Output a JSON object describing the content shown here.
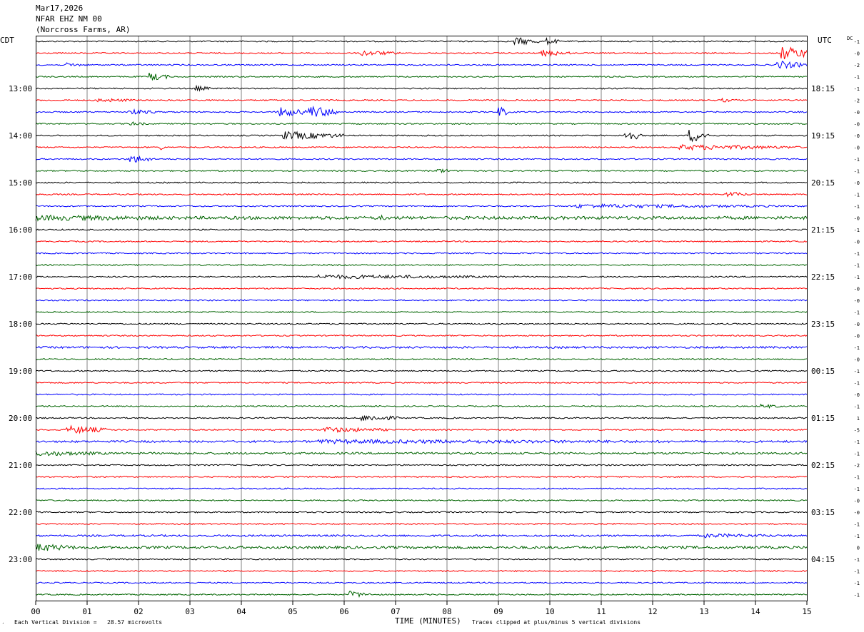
{
  "header": {
    "date": "Mar17,2026",
    "station": "NFAR EHZ NM 00",
    "location": "(Norcross Farms, AR)"
  },
  "left_zone": "CDT",
  "right_zone": "UTC",
  "dc_label": "DC",
  "footer": {
    "scale_note": "Each Vertical Division =   28.57 microvolts",
    "xlabel": "TIME (MINUTES)",
    "clip_note": "Traces clipped at plus/minus 5 vertical divisions",
    "corner_mark": "′"
  },
  "colors": {
    "trace_cycle": [
      "#000000",
      "#ff0000",
      "#0000ff",
      "#006400"
    ],
    "grid": "#808080",
    "frame": "#000000"
  },
  "chart_data": {
    "type": "line",
    "title": "NFAR EHZ NM 00",
    "xlabel": "TIME (MINUTES)",
    "x_ticks": [
      "00",
      "01",
      "02",
      "03",
      "04",
      "05",
      "06",
      "07",
      "08",
      "09",
      "10",
      "11",
      "12",
      "13",
      "14",
      "15"
    ],
    "xlim": [
      0,
      15
    ],
    "trace_count": 48,
    "minutes_per_trace": 15,
    "left_hour_labels": [
      "13:00",
      "14:00",
      "15:00",
      "16:00",
      "17:00",
      "18:00",
      "19:00",
      "20:00",
      "21:00",
      "22:00",
      "23:00"
    ],
    "right_hour_labels": [
      "18:15",
      "19:15",
      "20:15",
      "21:15",
      "22:15",
      "23:15",
      "00:15",
      "01:15",
      "02:15",
      "03:15",
      "04:15"
    ],
    "dc_offsets": [
      "-1",
      "-0",
      "-2",
      "-1",
      "-1",
      "-2",
      "-0",
      "-0",
      "-0",
      "-0",
      "-1",
      "-1",
      "-0",
      "-1",
      "-1",
      "-0",
      "-1",
      "-0",
      "-1",
      "-1",
      "-1",
      "-0",
      "-0",
      "-1",
      "-0",
      "-0",
      "-1",
      "-0",
      "-1",
      "-1",
      "-0",
      "-1",
      "1",
      "-5",
      "-1",
      "-1",
      "-2",
      "-1",
      "-1",
      "-0",
      "-0",
      "-1",
      "-1",
      "0",
      "-1",
      "-1",
      "-1",
      "-1"
    ],
    "events": [
      {
        "trace": 0,
        "minute": 9.3,
        "amp": 6,
        "dur": 0.5
      },
      {
        "trace": 0,
        "minute": 9.9,
        "amp": 5,
        "dur": 0.3
      },
      {
        "trace": 1,
        "minute": 6.3,
        "amp": 4,
        "dur": 0.8
      },
      {
        "trace": 1,
        "minute": 9.8,
        "amp": 5,
        "dur": 0.6
      },
      {
        "trace": 1,
        "minute": 14.5,
        "amp": 10,
        "dur": 0.6
      },
      {
        "trace": 2,
        "minute": 14.4,
        "amp": 6,
        "dur": 0.6
      },
      {
        "trace": 2,
        "minute": 0.6,
        "amp": 3,
        "dur": 0.4
      },
      {
        "trace": 3,
        "minute": 2.2,
        "amp": 6,
        "dur": 0.4
      },
      {
        "trace": 4,
        "minute": 3.1,
        "amp": 4,
        "dur": 0.3
      },
      {
        "trace": 5,
        "minute": 1.2,
        "amp": 3,
        "dur": 0.8
      },
      {
        "trace": 5,
        "minute": 13.3,
        "amp": 3,
        "dur": 0.4
      },
      {
        "trace": 6,
        "minute": 1.8,
        "amp": 4,
        "dur": 0.6
      },
      {
        "trace": 6,
        "minute": 4.7,
        "amp": 7,
        "dur": 0.6
      },
      {
        "trace": 6,
        "minute": 5.3,
        "amp": 9,
        "dur": 0.6
      },
      {
        "trace": 6,
        "minute": 9.0,
        "amp": 8,
        "dur": 0.2
      },
      {
        "trace": 7,
        "minute": 1.8,
        "amp": 3,
        "dur": 0.4
      },
      {
        "trace": 8,
        "minute": 4.8,
        "amp": 6,
        "dur": 1.2
      },
      {
        "trace": 8,
        "minute": 11.4,
        "amp": 9,
        "dur": 0.4
      },
      {
        "trace": 8,
        "minute": 12.7,
        "amp": 10,
        "dur": 0.4
      },
      {
        "trace": 9,
        "minute": 2.4,
        "amp": 5,
        "dur": 0.1
      },
      {
        "trace": 9,
        "minute": 12.5,
        "amp": 4,
        "dur": 2.4
      },
      {
        "trace": 10,
        "minute": 1.8,
        "amp": 6,
        "dur": 0.5
      },
      {
        "trace": 11,
        "minute": 7.8,
        "amp": 4,
        "dur": 0.3
      },
      {
        "trace": 13,
        "minute": 13.4,
        "amp": 4,
        "dur": 0.5
      },
      {
        "trace": 14,
        "minute": 10.5,
        "amp": 3,
        "dur": 4.4
      },
      {
        "trace": 15,
        "minute": 0.0,
        "amp": 4,
        "dur": 4.0
      },
      {
        "trace": 15,
        "minute": 6.7,
        "amp": 4,
        "dur": 0.2
      },
      {
        "trace": 20,
        "minute": 5.5,
        "amp": 3,
        "dur": 4.0
      },
      {
        "trace": 31,
        "minute": 14.1,
        "amp": 3,
        "dur": 0.5
      },
      {
        "trace": 32,
        "minute": 6.3,
        "amp": 5,
        "dur": 0.8
      },
      {
        "trace": 33,
        "minute": 0.6,
        "amp": 6,
        "dur": 0.8
      },
      {
        "trace": 33,
        "minute": 5.6,
        "amp": 4,
        "dur": 1.3
      },
      {
        "trace": 34,
        "minute": 5.5,
        "amp": 3,
        "dur": 9.5
      },
      {
        "trace": 35,
        "minute": 0.0,
        "amp": 4,
        "dur": 1.5
      },
      {
        "trace": 42,
        "minute": 13.0,
        "amp": 3,
        "dur": 2.0
      },
      {
        "trace": 43,
        "minute": 0.0,
        "amp": 6,
        "dur": 0.8
      },
      {
        "trace": 47,
        "minute": 6.1,
        "amp": 5,
        "dur": 0.4
      }
    ]
  }
}
